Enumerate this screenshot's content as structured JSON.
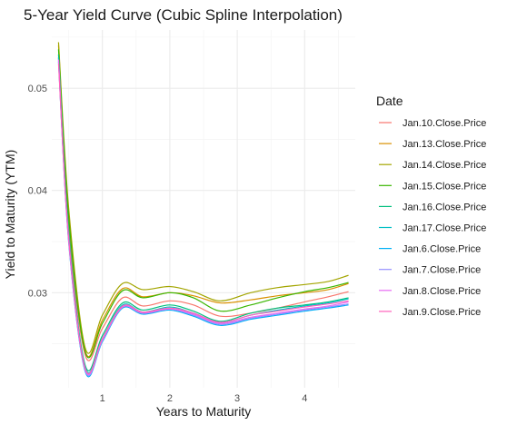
{
  "chart_data": {
    "type": "line",
    "title": "5-Year Yield Curve (Cubic Spline Interpolation)",
    "xlabel": "Years to Maturity",
    "ylabel": "Yield to Maturity (YTM)",
    "xlim": [
      0.25,
      4.75
    ],
    "ylim": [
      0.0207,
      0.0557
    ],
    "x_ticks": [
      1,
      2,
      3,
      4
    ],
    "x_tick_labels": [
      "1",
      "2",
      "3",
      "4"
    ],
    "y_ticks": [
      0.03,
      0.04,
      0.05
    ],
    "y_tick_labels": [
      "0.03",
      "0.04",
      "0.05"
    ],
    "grid": true,
    "legend_title": "Date",
    "legend_position": "right",
    "x": [
      0.35,
      0.5,
      0.75,
      1.0,
      1.3,
      1.6,
      2.0,
      2.35,
      2.75,
      3.2,
      3.6,
      4.0,
      4.35,
      4.65
    ],
    "series": [
      {
        "name": "Jan.10.Close.Price",
        "color": "#F8766D",
        "values": [
          0.053,
          0.0365,
          0.0238,
          0.0265,
          0.0295,
          0.0287,
          0.0292,
          0.0288,
          0.0277,
          0.028,
          0.0285,
          0.0291,
          0.0296,
          0.0301
        ]
      },
      {
        "name": "Jan.13.Close.Price",
        "color": "#D89000",
        "values": [
          0.0542,
          0.0378,
          0.0242,
          0.0273,
          0.0304,
          0.0296,
          0.03,
          0.0297,
          0.029,
          0.0293,
          0.0297,
          0.03,
          0.0303,
          0.0309
        ]
      },
      {
        "name": "Jan.14.Close.Price",
        "color": "#A3A500",
        "values": [
          0.0545,
          0.0383,
          0.0245,
          0.0278,
          0.0309,
          0.0303,
          0.0306,
          0.0301,
          0.0292,
          0.03,
          0.0305,
          0.0308,
          0.0311,
          0.0317
        ]
      },
      {
        "name": "Jan.15.Close.Price",
        "color": "#39B600",
        "values": [
          0.0538,
          0.0374,
          0.0241,
          0.027,
          0.0302,
          0.0295,
          0.03,
          0.0295,
          0.0282,
          0.0288,
          0.0295,
          0.0301,
          0.0305,
          0.031
        ]
      },
      {
        "name": "Jan.16.Close.Price",
        "color": "#00BF7D",
        "values": [
          0.0533,
          0.036,
          0.0228,
          0.0258,
          0.029,
          0.0283,
          0.0288,
          0.0282,
          0.0272,
          0.028,
          0.0285,
          0.0288,
          0.0291,
          0.0295
        ]
      },
      {
        "name": "Jan.17.Close.Price",
        "color": "#00BFC4",
        "values": [
          0.053,
          0.0357,
          0.0226,
          0.0255,
          0.0288,
          0.0281,
          0.0286,
          0.028,
          0.0271,
          0.0278,
          0.0283,
          0.0287,
          0.029,
          0.0294
        ]
      },
      {
        "name": "Jan.6.Close.Price",
        "color": "#00B0F6",
        "values": [
          0.0526,
          0.035,
          0.0222,
          0.0252,
          0.0285,
          0.0279,
          0.0283,
          0.0277,
          0.0268,
          0.0274,
          0.0278,
          0.0282,
          0.0285,
          0.0288
        ]
      },
      {
        "name": "Jan.7.Close.Price",
        "color": "#9590FF",
        "values": [
          0.0527,
          0.0351,
          0.0223,
          0.0253,
          0.0286,
          0.028,
          0.0284,
          0.0278,
          0.0269,
          0.0275,
          0.0279,
          0.0283,
          0.0286,
          0.0289
        ]
      },
      {
        "name": "Jan.8.Close.Price",
        "color": "#E76BF3",
        "values": [
          0.0528,
          0.0352,
          0.0224,
          0.0254,
          0.0286,
          0.028,
          0.0284,
          0.0279,
          0.027,
          0.0276,
          0.028,
          0.0284,
          0.0287,
          0.0291
        ]
      },
      {
        "name": "Jan.9.Close.Price",
        "color": "#FF62BC",
        "values": [
          0.0524,
          0.0354,
          0.0225,
          0.0255,
          0.0287,
          0.0281,
          0.0285,
          0.028,
          0.0271,
          0.0278,
          0.0282,
          0.0286,
          0.0289,
          0.0292
        ]
      }
    ]
  }
}
